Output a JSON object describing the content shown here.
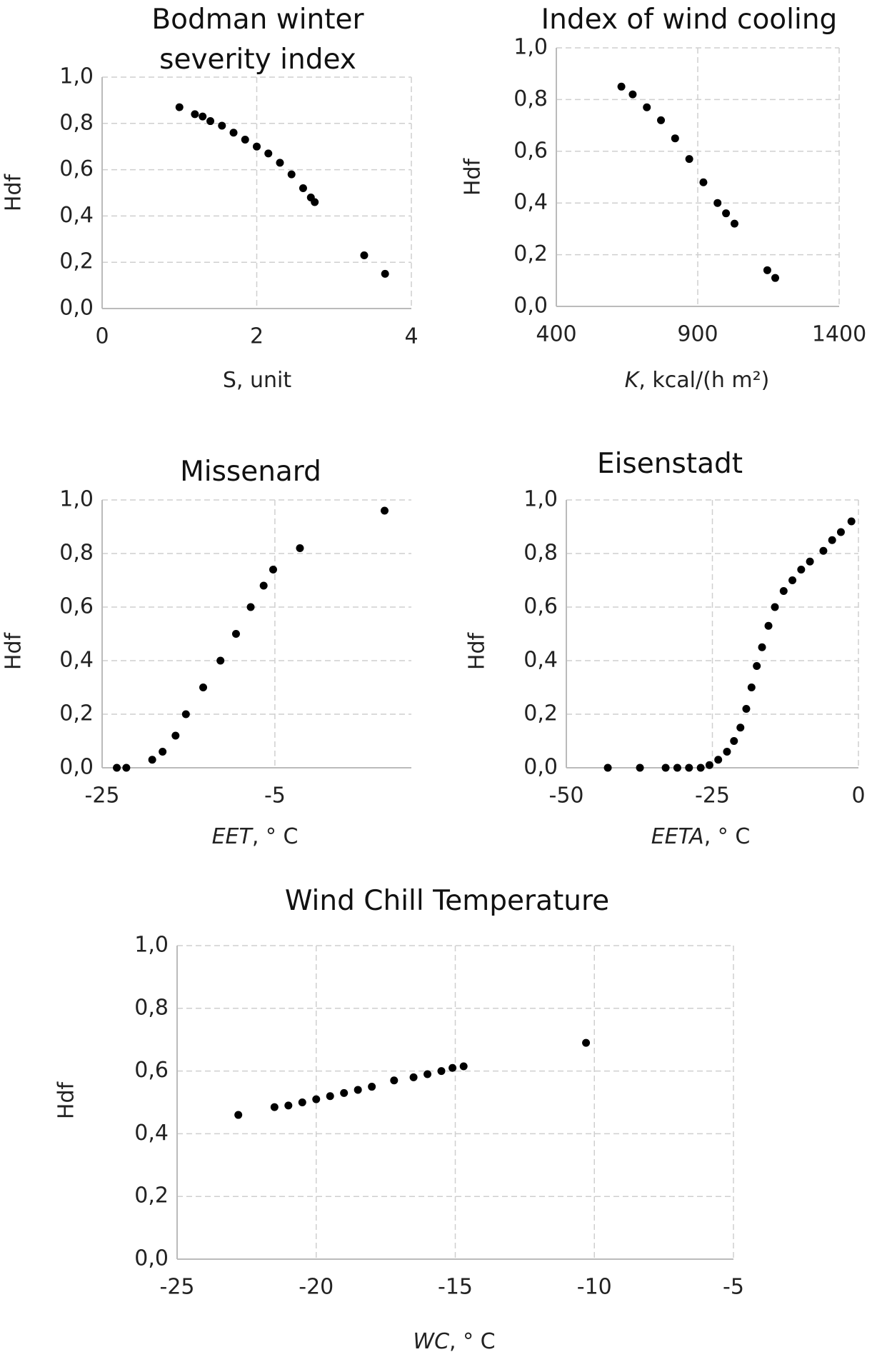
{
  "chart_data": [
    {
      "type": "scatter",
      "title": "Bodman winter severity index",
      "ylabel": "Hdf",
      "xlabel": "S, unit",
      "x": [
        1.0,
        1.2,
        1.3,
        1.4,
        1.55,
        1.7,
        1.85,
        2.0,
        2.15,
        2.3,
        2.45,
        2.6,
        2.7,
        2.75,
        3.39,
        3.66
      ],
      "values": [
        0.87,
        0.84,
        0.83,
        0.81,
        0.79,
        0.76,
        0.73,
        0.7,
        0.67,
        0.63,
        0.58,
        0.52,
        0.48,
        0.46,
        0.23,
        0.15
      ],
      "color": "#000000",
      "xlim": [
        0,
        4
      ],
      "xticks": [
        0,
        2,
        4
      ],
      "ylim": [
        0,
        1
      ],
      "yticks": [
        {
          "value": 0,
          "label": "0,0"
        },
        {
          "value": 0.2,
          "label": "0,2"
        },
        {
          "value": 0.4,
          "label": "0,4"
        },
        {
          "value": 0.6,
          "label": "0,6"
        },
        {
          "value": 0.8,
          "label": "0,8"
        },
        {
          "value": 1,
          "label": "1,0"
        }
      ],
      "grid": true
    },
    {
      "type": "scatter",
      "title": "Index of wind cooling",
      "ylabel": "Hdf",
      "xlabel_italic": "K",
      "xlabel": ", kcal/(h m²)",
      "x": [
        630,
        670,
        720,
        770,
        820,
        870,
        920,
        970,
        1000,
        1030,
        1146,
        1174
      ],
      "values": [
        0.85,
        0.82,
        0.77,
        0.72,
        0.65,
        0.57,
        0.48,
        0.4,
        0.36,
        0.32,
        0.14,
        0.11
      ],
      "color": "#000000",
      "xlim": [
        400,
        1400
      ],
      "xticks": [
        400,
        900,
        1400
      ],
      "ylim": [
        0,
        1
      ],
      "yticks": [
        {
          "value": 0,
          "label": "0,0"
        },
        {
          "value": 0.2,
          "label": "0,2"
        },
        {
          "value": 0.4,
          "label": "0,4"
        },
        {
          "value": 0.6,
          "label": "0,6"
        },
        {
          "value": 0.8,
          "label": "0,8"
        },
        {
          "value": 1,
          "label": "1,0"
        }
      ],
      "grid": true
    },
    {
      "type": "scatter",
      "title": "Missenard",
      "ylabel": "Hdf",
      "xlabel_italic": "EET",
      "xlabel": ", ° C",
      "x": [
        -23.3,
        -22.2,
        -19.2,
        -18,
        -16.5,
        -15.3,
        -13.3,
        -11.3,
        -9.5,
        -7.8,
        -6.3,
        -5.2,
        -2.1,
        7.7
      ],
      "values": [
        0,
        0,
        0.03,
        0.06,
        0.12,
        0.2,
        0.3,
        0.4,
        0.5,
        0.6,
        0.68,
        0.74,
        0.82,
        0.96
      ],
      "color": "#000000",
      "xlim": [
        -25,
        10.8
      ],
      "xticks": [
        -25,
        -5
      ],
      "ylim": [
        0,
        1
      ],
      "yticks": [
        {
          "value": 0,
          "label": "0,0"
        },
        {
          "value": 0.2,
          "label": "0,2"
        },
        {
          "value": 0.4,
          "label": "0,4"
        },
        {
          "value": 0.6,
          "label": "0,6"
        },
        {
          "value": 0.8,
          "label": "0,8"
        },
        {
          "value": 1,
          "label": "1,0"
        }
      ],
      "grid": true
    },
    {
      "type": "scatter",
      "title": "Eisenstadt",
      "ylabel": "Hdf",
      "xlabel_italic": "EETA",
      "xlabel": ", ° C",
      "x": [
        -42.9,
        -37.4,
        -33,
        -31,
        -29,
        -27,
        -25.5,
        -24,
        -22.5,
        -21.3,
        -20.2,
        -19.2,
        -18.3,
        -17.4,
        -16.5,
        -15.4,
        -14.3,
        -12.8,
        -11.3,
        -9.8,
        -8.3,
        -6,
        -4.5,
        -3,
        -1.2
      ],
      "values": [
        0,
        0,
        0,
        0,
        0,
        0,
        0.01,
        0.03,
        0.06,
        0.1,
        0.15,
        0.22,
        0.3,
        0.38,
        0.45,
        0.53,
        0.6,
        0.66,
        0.7,
        0.74,
        0.77,
        0.81,
        0.85,
        0.88,
        0.92
      ],
      "color": "#000000",
      "xlim": [
        -50,
        0
      ],
      "xticks": [
        -50,
        -25,
        0
      ],
      "ylim": [
        0,
        1
      ],
      "yticks": [
        {
          "value": 0,
          "label": "0,0"
        },
        {
          "value": 0.2,
          "label": "0,2"
        },
        {
          "value": 0.4,
          "label": "0,4"
        },
        {
          "value": 0.6,
          "label": "0,6"
        },
        {
          "value": 0.8,
          "label": "0,8"
        },
        {
          "value": 1,
          "label": "1,0"
        }
      ],
      "grid": true
    },
    {
      "type": "scatter",
      "title": "Wind Chill Temperature",
      "ylabel": "Hdf",
      "xlabel_italic": "WC",
      "xlabel": ", ° C",
      "x": [
        -22.8,
        -21.5,
        -21,
        -20.5,
        -20,
        -19.5,
        -19,
        -18.5,
        -18,
        -17.2,
        -16.5,
        -16,
        -15.5,
        -15.1,
        -14.7,
        -10.3
      ],
      "values": [
        0.46,
        0.485,
        0.49,
        0.5,
        0.51,
        0.52,
        0.53,
        0.54,
        0.55,
        0.57,
        0.58,
        0.59,
        0.6,
        0.61,
        0.615,
        0.69
      ],
      "color": "#000000",
      "xlim": [
        -25,
        -5
      ],
      "xticks": [
        -25,
        -20,
        -15,
        -10,
        -5
      ],
      "ylim": [
        0,
        1
      ],
      "yticks": [
        {
          "value": 0,
          "label": "0,0"
        },
        {
          "value": 0.2,
          "label": "0,2"
        },
        {
          "value": 0.4,
          "label": "0,4"
        },
        {
          "value": 0.6,
          "label": "0,6"
        },
        {
          "value": 0.8,
          "label": "0,8"
        },
        {
          "value": 1,
          "label": "1,0"
        }
      ],
      "grid": true
    }
  ]
}
